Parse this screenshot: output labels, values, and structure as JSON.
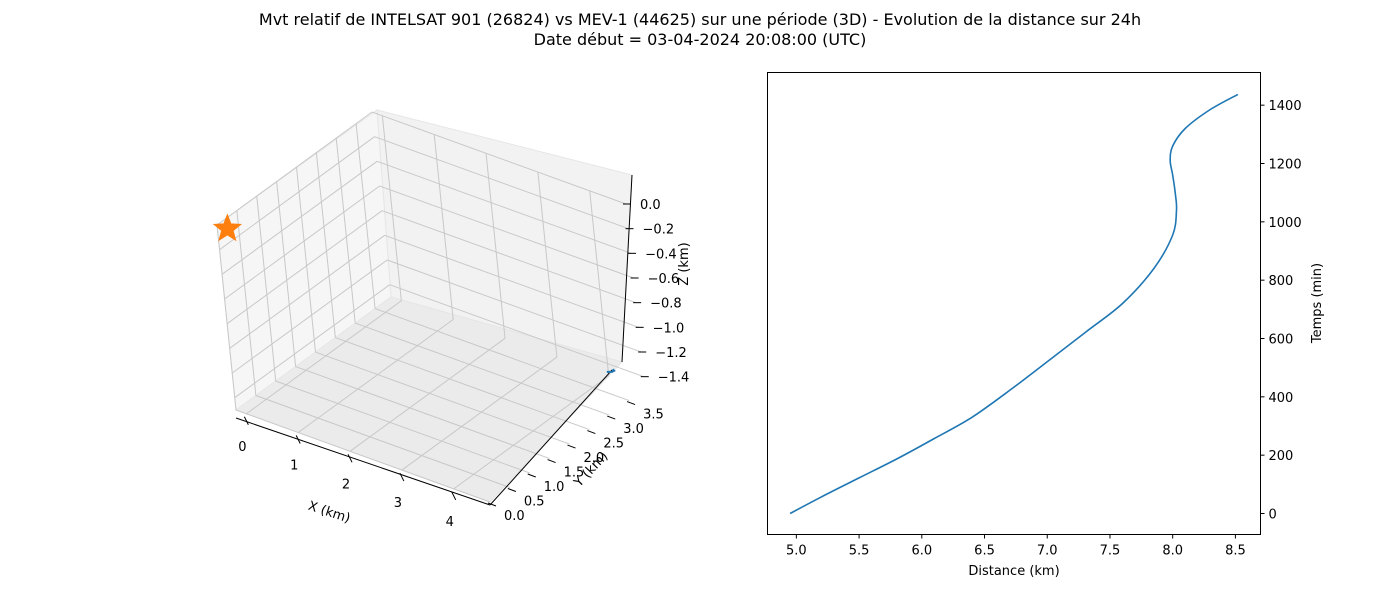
{
  "figure": {
    "title_line1": "Mvt relatif de INTELSAT 901 (26824) vs MEV-1 (44625) sur une période (3D) - Evolution de la distance sur 24h",
    "title_line2": "Date début = 03-04-2024 20:08:00 (UTC)"
  },
  "chart_data": [
    {
      "type": "line3d",
      "xlabel": "X (km)",
      "ylabel": "Y (km)",
      "zlabel": "Z (km)",
      "x_ticks": [
        "0",
        "1",
        "2",
        "3",
        "4"
      ],
      "y_ticks": [
        "0.0",
        "0.5",
        "1.0",
        "1.5",
        "2.0",
        "2.5",
        "3.0",
        "3.5"
      ],
      "z_ticks": [
        "0.0",
        "−0.2",
        "−0.4",
        "−0.6",
        "−0.8",
        "−1.0",
        "−1.2",
        "−1.4"
      ],
      "xlim": [
        -0.2,
        4.7
      ],
      "ylim": [
        0.0,
        3.9
      ],
      "zlim": [
        -1.5,
        0.0
      ],
      "grid": true,
      "series": [
        {
          "kind": "trajectory",
          "color": "#1f77b4",
          "points": [
            [
              4.05,
              3.95,
              -1.45
            ],
            [
              4.12,
              3.9,
              -1.44
            ],
            [
              4.16,
              3.8,
              -1.42
            ],
            [
              4.14,
              3.7,
              -1.4
            ]
          ]
        },
        {
          "kind": "marker",
          "marker": "star",
          "color": "#ff7f0e",
          "points": [
            [
              0.0,
              0.0,
              0.0
            ]
          ]
        }
      ]
    },
    {
      "type": "line",
      "xlabel": "Distance (km)",
      "ylabel": "Temps (min)",
      "xlim": [
        4.77,
        8.7
      ],
      "ylim": [
        -72,
        1512
      ],
      "x_ticks": [
        5.0,
        5.5,
        6.0,
        6.5,
        7.0,
        7.5,
        8.0,
        8.5
      ],
      "y_ticks": [
        0,
        200,
        400,
        600,
        800,
        1000,
        1200,
        1400
      ],
      "y_axis_position": "right",
      "grid": false,
      "series": [
        {
          "color": "#1f77b4",
          "x": [
            4.95,
            5.2,
            5.5,
            5.8,
            6.1,
            6.4,
            6.7,
            7.0,
            7.3,
            7.6,
            7.85,
            8.0,
            8.03,
            8.02,
            8.0,
            7.98,
            8.0,
            8.1,
            8.3,
            8.52
          ],
          "y": [
            0,
            57,
            122,
            187,
            257,
            330,
            422,
            520,
            620,
            720,
            840,
            955,
            1040,
            1100,
            1160,
            1210,
            1260,
            1320,
            1385,
            1437
          ]
        }
      ]
    }
  ]
}
